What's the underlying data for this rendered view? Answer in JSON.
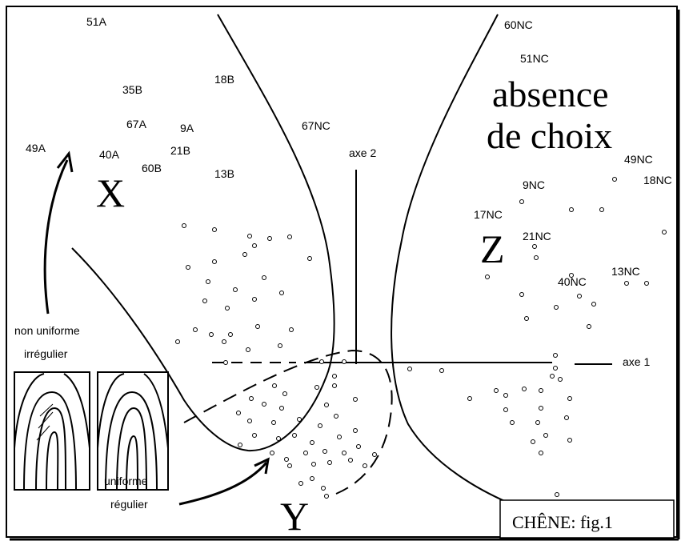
{
  "labels": [
    "51A",
    "35B",
    "18B",
    "67A",
    "9A",
    "49A",
    "40A",
    "21B",
    "60B",
    "13B",
    "67NC",
    "axe 2",
    "60NC",
    "51NC",
    "49NC",
    "18NC",
    "9NC",
    "17NC",
    "21NC",
    "40NC",
    "13NC",
    "axe 1"
  ],
  "big_letters": [
    "X",
    "Z",
    "Y"
  ],
  "absence_de_choix": [
    "absence",
    "de choix"
  ],
  "legend": {
    "top": [
      "non uniforme",
      "irrégulier"
    ],
    "bottom": [
      "uniforme",
      "régulier"
    ]
  },
  "caption": "CHÊNE: fig.1"
}
